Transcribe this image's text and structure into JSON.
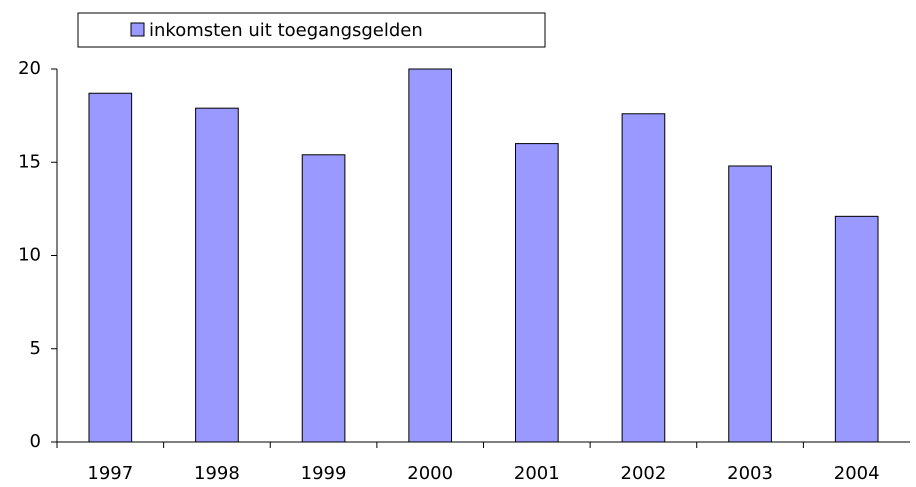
{
  "chart_data": {
    "type": "bar",
    "categories": [
      "1997",
      "1998",
      "1999",
      "2000",
      "2001",
      "2002",
      "2003",
      "2004"
    ],
    "series": [
      {
        "name": "inkomsten uit toegangsgelden",
        "color": "#9999ff",
        "values": [
          18.7,
          17.9,
          15.4,
          20.0,
          16.0,
          17.6,
          14.8,
          12.1
        ]
      }
    ],
    "ylim": [
      0,
      20
    ],
    "yticks": [
      0,
      5,
      10,
      15,
      20
    ],
    "grid": false,
    "legend": "top"
  }
}
